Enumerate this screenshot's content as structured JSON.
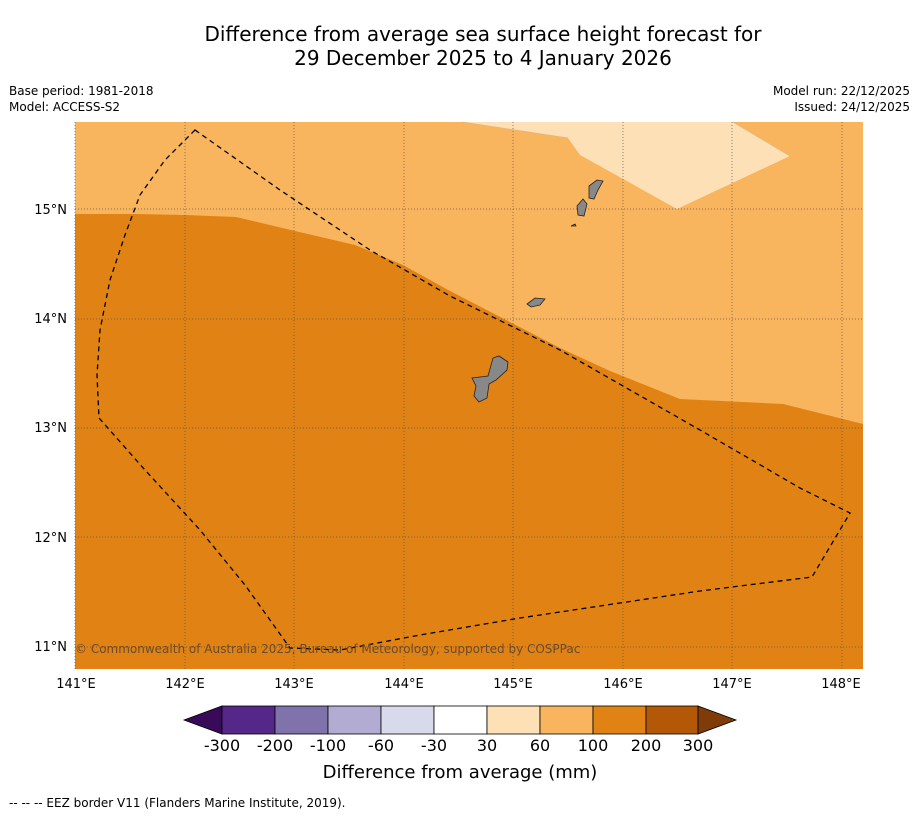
{
  "title": {
    "line1": "Difference from average sea surface height forecast for",
    "line2": "29 December 2025 to 4 January 2026"
  },
  "meta_left": {
    "base_period": "Base period: 1981-2018",
    "model": "Model: ACCESS-S2"
  },
  "meta_right": {
    "model_run": "Model run: 22/12/2025",
    "issued": "Issued: 24/12/2025"
  },
  "map": {
    "lat_labels": [
      "15°N",
      "14°N",
      "13°N",
      "12°N",
      "11°N"
    ],
    "lon_labels": [
      "141°E",
      "142°E",
      "143°E",
      "144°E",
      "145°E",
      "146°E",
      "147°E",
      "148°E"
    ],
    "copyright": "© Commonwealth of Australia 2025, Bureau of Meteorology, supported by COSPPac",
    "colors": {
      "light": "#fde0b6",
      "medium": "#f9b55e",
      "dark": "#e08214",
      "land": "#888888"
    }
  },
  "colorbar": {
    "labels": [
      "-300",
      "-200",
      "-100",
      "-60",
      "-30",
      "30",
      "60",
      "100",
      "200",
      "300"
    ],
    "colors": [
      "#3a0a5a",
      "#542788",
      "#8073ac",
      "#b2abd2",
      "#d8daeb",
      "#ffffff",
      "#fee0b6",
      "#f9b55e",
      "#e08214",
      "#b35806",
      "#7f3b08"
    ],
    "title": "Difference from average (mm)"
  },
  "footer": "--  --  -- EEZ border V11 (Flanders Marine Institute, 2019)."
}
